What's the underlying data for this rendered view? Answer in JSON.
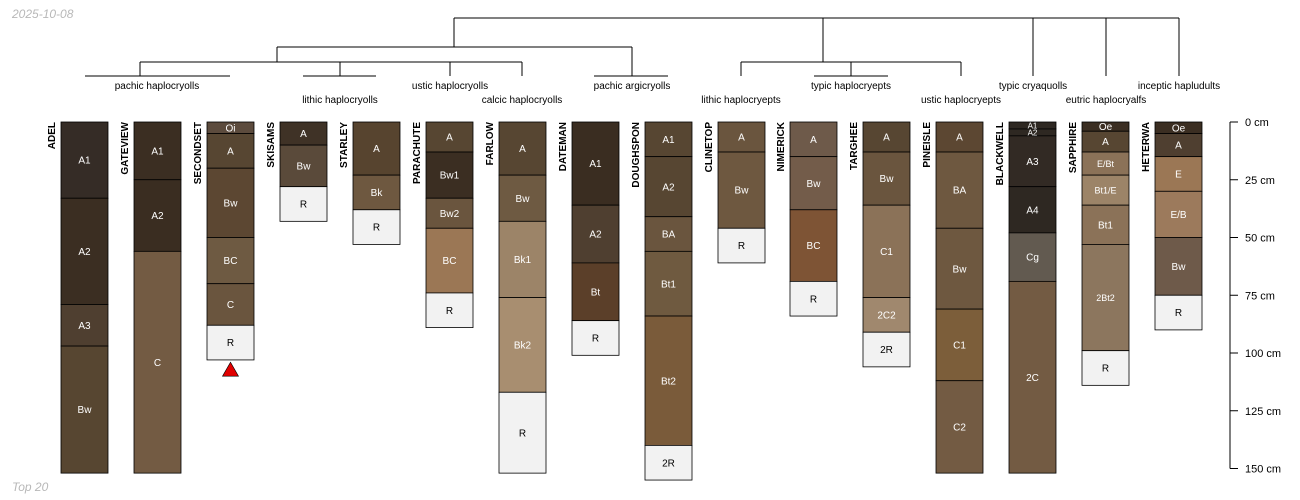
{
  "date_stamp": "2025-10-08",
  "footer_text": "Top 20",
  "chart_data": {
    "type": "soil-profile-sketch",
    "title": "",
    "depth_axis": {
      "unit": "cm",
      "range": [
        0,
        150
      ],
      "ticks": [
        0,
        25,
        50,
        75,
        100,
        125,
        150
      ],
      "tick_labels": [
        "0 cm",
        "25 cm",
        "50 cm",
        "75 cm",
        "100 cm",
        "125 cm",
        "150 cm"
      ]
    },
    "profiles": [
      {
        "name": "ADEL",
        "horizons": [
          {
            "name": "A1",
            "top": 0,
            "bottom": 33,
            "color": "#352C26"
          },
          {
            "name": "A2",
            "top": 33,
            "bottom": 79,
            "color": "#3B2E22"
          },
          {
            "name": "A3",
            "top": 79,
            "bottom": 97,
            "color": "#4F3F30"
          },
          {
            "name": "Bw",
            "top": 97,
            "bottom": 152,
            "color": "#574631"
          }
        ]
      },
      {
        "name": "GATEVIEW",
        "horizons": [
          {
            "name": "A1",
            "top": 0,
            "bottom": 25,
            "color": "#3B2E22"
          },
          {
            "name": "A2",
            "top": 25,
            "bottom": 56,
            "color": "#3A2D21"
          },
          {
            "name": "C",
            "top": 56,
            "bottom": 152,
            "color": "#735B43"
          }
        ]
      },
      {
        "name": "SECONDSET",
        "horizons": [
          {
            "name": "Oi",
            "top": 0,
            "bottom": 5,
            "color": "#5C4B3D"
          },
          {
            "name": "A",
            "top": 5,
            "bottom": 20,
            "color": "#574632"
          },
          {
            "name": "Bw",
            "top": 20,
            "bottom": 50,
            "color": "#5C4732"
          },
          {
            "name": "BC",
            "top": 50,
            "bottom": 70,
            "color": "#6E5A42"
          },
          {
            "name": "C",
            "top": 70,
            "bottom": 88,
            "color": "#6A553E"
          },
          {
            "name": "R",
            "top": 88,
            "bottom": 103,
            "color": "#F2F2F2"
          }
        ]
      },
      {
        "name": "SKISAMS",
        "horizons": [
          {
            "name": "A",
            "top": 0,
            "bottom": 10,
            "color": "#3F3226"
          },
          {
            "name": "Bw",
            "top": 10,
            "bottom": 28,
            "color": "#5A4A3A"
          },
          {
            "name": "R",
            "top": 28,
            "bottom": 43,
            "color": "#F2F2F2"
          }
        ]
      },
      {
        "name": "STARLEY",
        "horizons": [
          {
            "name": "A",
            "top": 0,
            "bottom": 23,
            "color": "#57442F"
          },
          {
            "name": "Bk",
            "top": 23,
            "bottom": 38,
            "color": "#6E5840"
          },
          {
            "name": "R",
            "top": 38,
            "bottom": 53,
            "color": "#F2F2F2"
          }
        ]
      },
      {
        "name": "PARACHUTE",
        "horizons": [
          {
            "name": "A",
            "top": 0,
            "bottom": 13,
            "color": "#574632"
          },
          {
            "name": "Bw1",
            "top": 13,
            "bottom": 33,
            "color": "#3B2E22"
          },
          {
            "name": "Bw2",
            "top": 33,
            "bottom": 46,
            "color": "#6A553E"
          },
          {
            "name": "BC",
            "top": 46,
            "bottom": 74,
            "color": "#9B7755"
          },
          {
            "name": "R",
            "top": 74,
            "bottom": 89,
            "color": "#F2F2F2"
          }
        ]
      },
      {
        "name": "FARLOW",
        "horizons": [
          {
            "name": "A",
            "top": 0,
            "bottom": 23,
            "color": "#574632"
          },
          {
            "name": "Bw",
            "top": 23,
            "bottom": 43,
            "color": "#6E5A42"
          },
          {
            "name": "Bk1",
            "top": 43,
            "bottom": 76,
            "color": "#9C8468"
          },
          {
            "name": "Bk2",
            "top": 76,
            "bottom": 117,
            "color": "#A88E70"
          },
          {
            "name": "R",
            "top": 117,
            "bottom": 152,
            "color": "#F2F2F2"
          }
        ]
      },
      {
        "name": "DATEMAN",
        "horizons": [
          {
            "name": "A1",
            "top": 0,
            "bottom": 36,
            "color": "#3A2D21"
          },
          {
            "name": "A2",
            "top": 36,
            "bottom": 61,
            "color": "#4F3F30"
          },
          {
            "name": "Bt",
            "top": 61,
            "bottom": 86,
            "color": "#5B3F29"
          },
          {
            "name": "R",
            "top": 86,
            "bottom": 101,
            "color": "#F2F2F2"
          }
        ]
      },
      {
        "name": "DOUGHSPON",
        "horizons": [
          {
            "name": "A1",
            "top": 0,
            "bottom": 15,
            "color": "#574632"
          },
          {
            "name": "A2",
            "top": 15,
            "bottom": 41,
            "color": "#574632"
          },
          {
            "name": "BA",
            "top": 41,
            "bottom": 56,
            "color": "#6A553E"
          },
          {
            "name": "Bt1",
            "top": 56,
            "bottom": 84,
            "color": "#6F5A40"
          },
          {
            "name": "Bt2",
            "top": 84,
            "bottom": 140,
            "color": "#7A5B3A"
          },
          {
            "name": "2R",
            "top": 140,
            "bottom": 155,
            "color": "#F2F2F2"
          }
        ]
      },
      {
        "name": "CLINETOP",
        "horizons": [
          {
            "name": "A",
            "top": 0,
            "bottom": 13,
            "color": "#6A553E"
          },
          {
            "name": "Bw",
            "top": 13,
            "bottom": 46,
            "color": "#6E5840"
          },
          {
            "name": "R",
            "top": 46,
            "bottom": 61,
            "color": "#F2F2F2"
          }
        ]
      },
      {
        "name": "NIMERICK",
        "horizons": [
          {
            "name": "A",
            "top": 0,
            "bottom": 15,
            "color": "#6E5A4A"
          },
          {
            "name": "Bw",
            "top": 15,
            "bottom": 38,
            "color": "#735C4A"
          },
          {
            "name": "BC",
            "top": 38,
            "bottom": 69,
            "color": "#7E5435"
          },
          {
            "name": "R",
            "top": 69,
            "bottom": 84,
            "color": "#F2F2F2"
          }
        ]
      },
      {
        "name": "TARGHEE",
        "horizons": [
          {
            "name": "A",
            "top": 0,
            "bottom": 13,
            "color": "#574632"
          },
          {
            "name": "Bw",
            "top": 13,
            "bottom": 36,
            "color": "#6A553E"
          },
          {
            "name": "C1",
            "top": 36,
            "bottom": 76,
            "color": "#8B7258"
          },
          {
            "name": "2C2",
            "top": 76,
            "bottom": 91,
            "color": "#A0886E"
          },
          {
            "name": "2R",
            "top": 91,
            "bottom": 106,
            "color": "#F2F2F2"
          }
        ]
      },
      {
        "name": "PINEISLE",
        "horizons": [
          {
            "name": "A",
            "top": 0,
            "bottom": 13,
            "color": "#5C4732"
          },
          {
            "name": "BA",
            "top": 13,
            "bottom": 46,
            "color": "#6E5840"
          },
          {
            "name": "Bw",
            "top": 46,
            "bottom": 81,
            "color": "#6E5840"
          },
          {
            "name": "C1",
            "top": 81,
            "bottom": 112,
            "color": "#7C5E3A"
          },
          {
            "name": "C2",
            "top": 112,
            "bottom": 152,
            "color": "#735B43"
          }
        ]
      },
      {
        "name": "BLACKWELL",
        "horizons": [
          {
            "name": "A1",
            "top": 0,
            "bottom": 3,
            "color": "#2E2822"
          },
          {
            "name": "A2",
            "top": 3,
            "bottom": 6,
            "color": "#2E2822"
          },
          {
            "name": "A3",
            "top": 6,
            "bottom": 28,
            "color": "#322A24"
          },
          {
            "name": "A4",
            "top": 28,
            "bottom": 48,
            "color": "#2E2822"
          },
          {
            "name": "Cg",
            "top": 48,
            "bottom": 69,
            "color": "#625A50"
          },
          {
            "name": "2C",
            "top": 69,
            "bottom": 152,
            "color": "#735B43"
          }
        ]
      },
      {
        "name": "SAPPHIRE",
        "horizons": [
          {
            "name": "Oe",
            "top": 0,
            "bottom": 4,
            "color": "#3B2E22"
          },
          {
            "name": "A",
            "top": 4,
            "bottom": 13,
            "color": "#574632"
          },
          {
            "name": "E/Bt",
            "top": 13,
            "bottom": 23,
            "color": "#8B7258"
          },
          {
            "name": "Bt1/E",
            "top": 23,
            "bottom": 36,
            "color": "#9C8468"
          },
          {
            "name": "Bt1",
            "top": 36,
            "bottom": 53,
            "color": "#8B7258"
          },
          {
            "name": "2Bt2",
            "top": 53,
            "bottom": 99,
            "color": "#8C765E"
          },
          {
            "name": "R",
            "top": 99,
            "bottom": 114,
            "color": "#F2F2F2"
          }
        ]
      },
      {
        "name": "HETERWA",
        "horizons": [
          {
            "name": "Oe",
            "top": 0,
            "bottom": 5,
            "color": "#3B2E22"
          },
          {
            "name": "A",
            "top": 5,
            "bottom": 15,
            "color": "#4F3F30"
          },
          {
            "name": "E",
            "top": 15,
            "bottom": 30,
            "color": "#9B7755"
          },
          {
            "name": "E/B",
            "top": 30,
            "bottom": 50,
            "color": "#9C7A5C"
          },
          {
            "name": "Bw",
            "top": 50,
            "bottom": 75,
            "color": "#6E5A4A"
          },
          {
            "name": "R",
            "top": 75,
            "bottom": 90,
            "color": "#F2F2F2"
          }
        ]
      }
    ],
    "marker": {
      "profile": "SECONDSET",
      "depth": 107,
      "color": "#E00000"
    },
    "dendrogram_labels": [
      "pachic haplocryolls",
      "lithic haplocryolls",
      "ustic haplocryolls",
      "calcic haplocryolls",
      "pachic argicryolls",
      "lithic haplocryepts",
      "typic haplocryepts",
      "ustic haplocryepts",
      "typic cryaquolls",
      "eutric haplocryalfs",
      "inceptic hapludults"
    ]
  }
}
